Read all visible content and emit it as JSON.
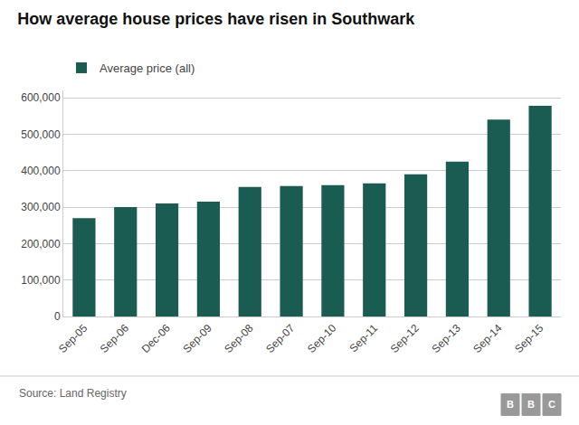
{
  "chart_data": {
    "type": "bar",
    "title": "How average house prices have risen in Southwark",
    "annotations": [
      "Source: Land Registry",
      "BBC"
    ],
    "categories": [
      "Sep-05",
      "Sep-06",
      "Dec-06",
      "Sep-09",
      "Sep-08",
      "Sep-07",
      "Sep-10",
      "Sep-11",
      "Sep-12",
      "Sep-13",
      "Sep-14",
      "Sep-15"
    ],
    "series": [
      {
        "name": "Average price (all)",
        "color": "#1a5c52",
        "values": [
          270000,
          300000,
          310000,
          315000,
          355000,
          358000,
          360000,
          365000,
          390000,
          425000,
          540000,
          578000
        ]
      }
    ],
    "ylim": [
      0,
      620000
    ],
    "yticks": [
      0,
      {
        "value": 100000,
        "label": "100,000"
      },
      {
        "value": 200000,
        "label": "200,000"
      },
      {
        "value": 300000,
        "label": "300,000"
      },
      {
        "value": 400000,
        "label": "400,000"
      },
      {
        "value": 500000,
        "label": "500,000"
      },
      {
        "value": 600000,
        "label": "600,000"
      }
    ],
    "grid": true,
    "legend": "upper left"
  }
}
